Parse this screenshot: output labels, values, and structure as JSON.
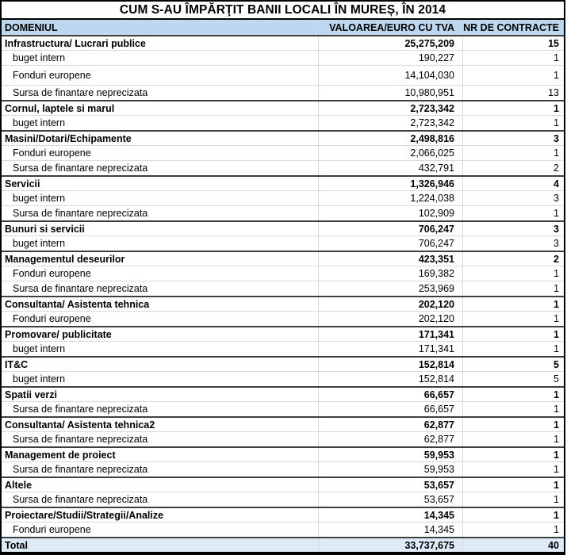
{
  "title": "CUM S-AU ÎMPĂRŢIT BANII LOCALI ÎN MUREȘ, ÎN 2014",
  "colors": {
    "header_bg": "#BDD7EE",
    "total_bg": "#DEEAF6",
    "grid_light": "#D9D9D9",
    "grid_dark": "#3F3F3F",
    "outer_border": "#000000"
  },
  "chart_data": {
    "type": "table",
    "title": "CUM S-AU ÎMPĂRŢIT BANII LOCALI ÎN MUREȘ, ÎN 2014",
    "columns": [
      "DOMENIUL",
      "VALOAREA/EURO CU TVA",
      "NR DE CONTRACTE"
    ],
    "rows": [
      {
        "row_type": "category",
        "domain": "Infrastructura/ Lucrari publice",
        "value": 25275209,
        "value_display": "25,275,209",
        "contracts": 15
      },
      {
        "row_type": "sub",
        "domain": "buget intern",
        "value": 190227,
        "value_display": "190,227",
        "contracts": 1
      },
      {
        "row_type": "sub",
        "tall": true,
        "domain": "Fonduri europene",
        "value": 14104030,
        "value_display": "14,104,030",
        "contracts": 1
      },
      {
        "row_type": "sub",
        "domain": "Sursa de finantare neprecizata",
        "value": 10980951,
        "value_display": "10,980,951",
        "contracts": 13
      },
      {
        "row_type": "category",
        "domain": "Cornul, laptele si marul",
        "value": 2723342,
        "value_display": "2,723,342",
        "contracts": 1
      },
      {
        "row_type": "sub",
        "domain": "buget intern",
        "value": 2723342,
        "value_display": "2,723,342",
        "contracts": 1
      },
      {
        "row_type": "category",
        "domain": "Masini/Dotari/Echipamente",
        "value": 2498816,
        "value_display": "2,498,816",
        "contracts": 3
      },
      {
        "row_type": "sub",
        "domain": "Fonduri europene",
        "value": 2066025,
        "value_display": "2,066,025",
        "contracts": 1
      },
      {
        "row_type": "sub",
        "domain": "Sursa de finantare neprecizata",
        "value": 432791,
        "value_display": "432,791",
        "contracts": 2
      },
      {
        "row_type": "category",
        "domain": "Servicii",
        "value": 1326946,
        "value_display": "1,326,946",
        "contracts": 4
      },
      {
        "row_type": "sub",
        "domain": "buget intern",
        "value": 1224038,
        "value_display": "1,224,038",
        "contracts": 3
      },
      {
        "row_type": "sub",
        "domain": "Sursa de finantare neprecizata",
        "value": 102909,
        "value_display": "102,909",
        "contracts": 1
      },
      {
        "row_type": "category",
        "domain": "Bunuri si servicii",
        "value": 706247,
        "value_display": "706,247",
        "contracts": 3
      },
      {
        "row_type": "sub",
        "domain": "buget intern",
        "value": 706247,
        "value_display": "706,247",
        "contracts": 3
      },
      {
        "row_type": "category",
        "domain": "Managementul deseurilor",
        "value": 423351,
        "value_display": "423,351",
        "contracts": 2
      },
      {
        "row_type": "sub",
        "domain": "Fonduri europene",
        "value": 169382,
        "value_display": "169,382",
        "contracts": 1
      },
      {
        "row_type": "sub",
        "domain": "Sursa de finantare neprecizata",
        "value": 253969,
        "value_display": "253,969",
        "contracts": 1
      },
      {
        "row_type": "category",
        "domain": "Consultanta/ Asistenta tehnica",
        "value": 202120,
        "value_display": "202,120",
        "contracts": 1
      },
      {
        "row_type": "sub",
        "domain": "Fonduri europene",
        "value": 202120,
        "value_display": "202,120",
        "contracts": 1
      },
      {
        "row_type": "category",
        "domain": "Promovare/ publicitate",
        "value": 171341,
        "value_display": "171,341",
        "contracts": 1
      },
      {
        "row_type": "sub",
        "domain": "buget intern",
        "value": 171341,
        "value_display": "171,341",
        "contracts": 1
      },
      {
        "row_type": "category",
        "domain": "IT&C",
        "value": 152814,
        "value_display": "152,814",
        "contracts": 5
      },
      {
        "row_type": "sub",
        "domain": "buget intern",
        "value": 152814,
        "value_display": "152,814",
        "contracts": 5
      },
      {
        "row_type": "category",
        "domain": "Spatii verzi",
        "value": 66657,
        "value_display": "66,657",
        "contracts": 1
      },
      {
        "row_type": "sub",
        "domain": "Sursa de finantare neprecizata",
        "value": 66657,
        "value_display": "66,657",
        "contracts": 1
      },
      {
        "row_type": "category",
        "domain": "Consultanta/ Asistenta tehnica2",
        "value": 62877,
        "value_display": "62,877",
        "contracts": 1
      },
      {
        "row_type": "sub",
        "domain": "Sursa de finantare neprecizata",
        "value": 62877,
        "value_display": "62,877",
        "contracts": 1
      },
      {
        "row_type": "category",
        "domain": "Management de proiect",
        "value": 59953,
        "value_display": "59,953",
        "contracts": 1
      },
      {
        "row_type": "sub",
        "domain": "Sursa de finantare neprecizata",
        "value": 59953,
        "value_display": "59,953",
        "contracts": 1
      },
      {
        "row_type": "category",
        "domain": "Altele",
        "value": 53657,
        "value_display": "53,657",
        "contracts": 1
      },
      {
        "row_type": "sub",
        "domain": "Sursa de finantare neprecizata",
        "value": 53657,
        "value_display": "53,657",
        "contracts": 1
      },
      {
        "row_type": "category",
        "domain": "Proiectare/Studii/Strategii/Analize",
        "value": 14345,
        "value_display": "14,345",
        "contracts": 1
      },
      {
        "row_type": "sub",
        "domain": "Fonduri europene",
        "value": 14345,
        "value_display": "14,345",
        "contracts": 1
      },
      {
        "row_type": "total",
        "domain": "Total",
        "value": 33737675,
        "value_display": "33,737,675",
        "contracts": 40
      }
    ]
  }
}
